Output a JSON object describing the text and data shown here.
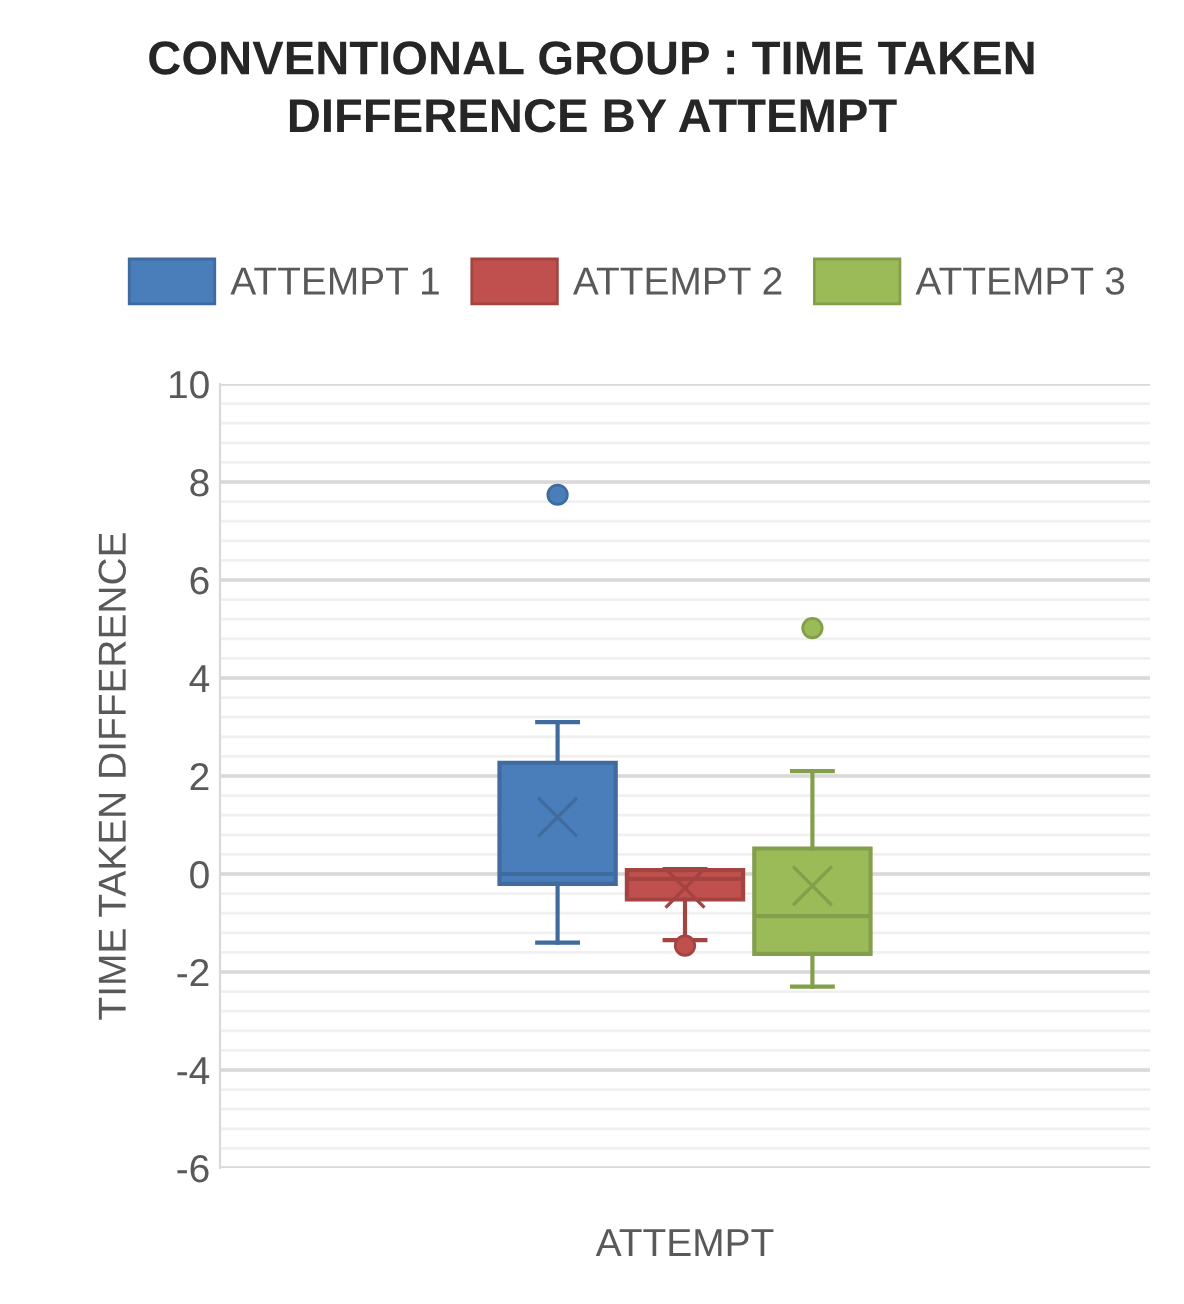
{
  "chart_data": {
    "type": "box",
    "title": "CONVENTIONAL GROUP : TIME TAKEN\nDIFFERENCE BY ATTEMPT",
    "xlabel": "ATTEMPT",
    "ylabel": "TIME TAKEN DIFFERENCE",
    "categories": [
      null
    ],
    "ylim": [
      -6,
      10
    ],
    "yticks": [
      -6,
      -4,
      -2,
      0,
      2,
      4,
      6,
      8,
      10
    ],
    "grid": "y",
    "legend": "top",
    "series": [
      {
        "name": "ATTEMPT 1",
        "color": "#4a7ebb",
        "boxes": [
          {
            "low": -1.4,
            "q1": -0.2,
            "median": 0.0,
            "q3": 2.27,
            "high": 3.1,
            "mean": 1.16,
            "outliers": [
              7.74
            ]
          }
        ]
      },
      {
        "name": "ATTEMPT 2",
        "color": "#c0504d",
        "boxes": [
          {
            "low": -1.35,
            "q1": -0.52,
            "median": -0.1,
            "q3": 0.08,
            "high": 0.1,
            "mean": -0.29,
            "outliers": [
              -1.46
            ]
          }
        ]
      },
      {
        "name": "ATTEMPT 3",
        "color": "#9bbb59",
        "boxes": [
          {
            "low": -2.3,
            "q1": -1.63,
            "median": -0.86,
            "q3": 0.52,
            "high": 2.1,
            "mean": -0.24,
            "outliers": [
              5.02
            ]
          }
        ]
      }
    ]
  }
}
